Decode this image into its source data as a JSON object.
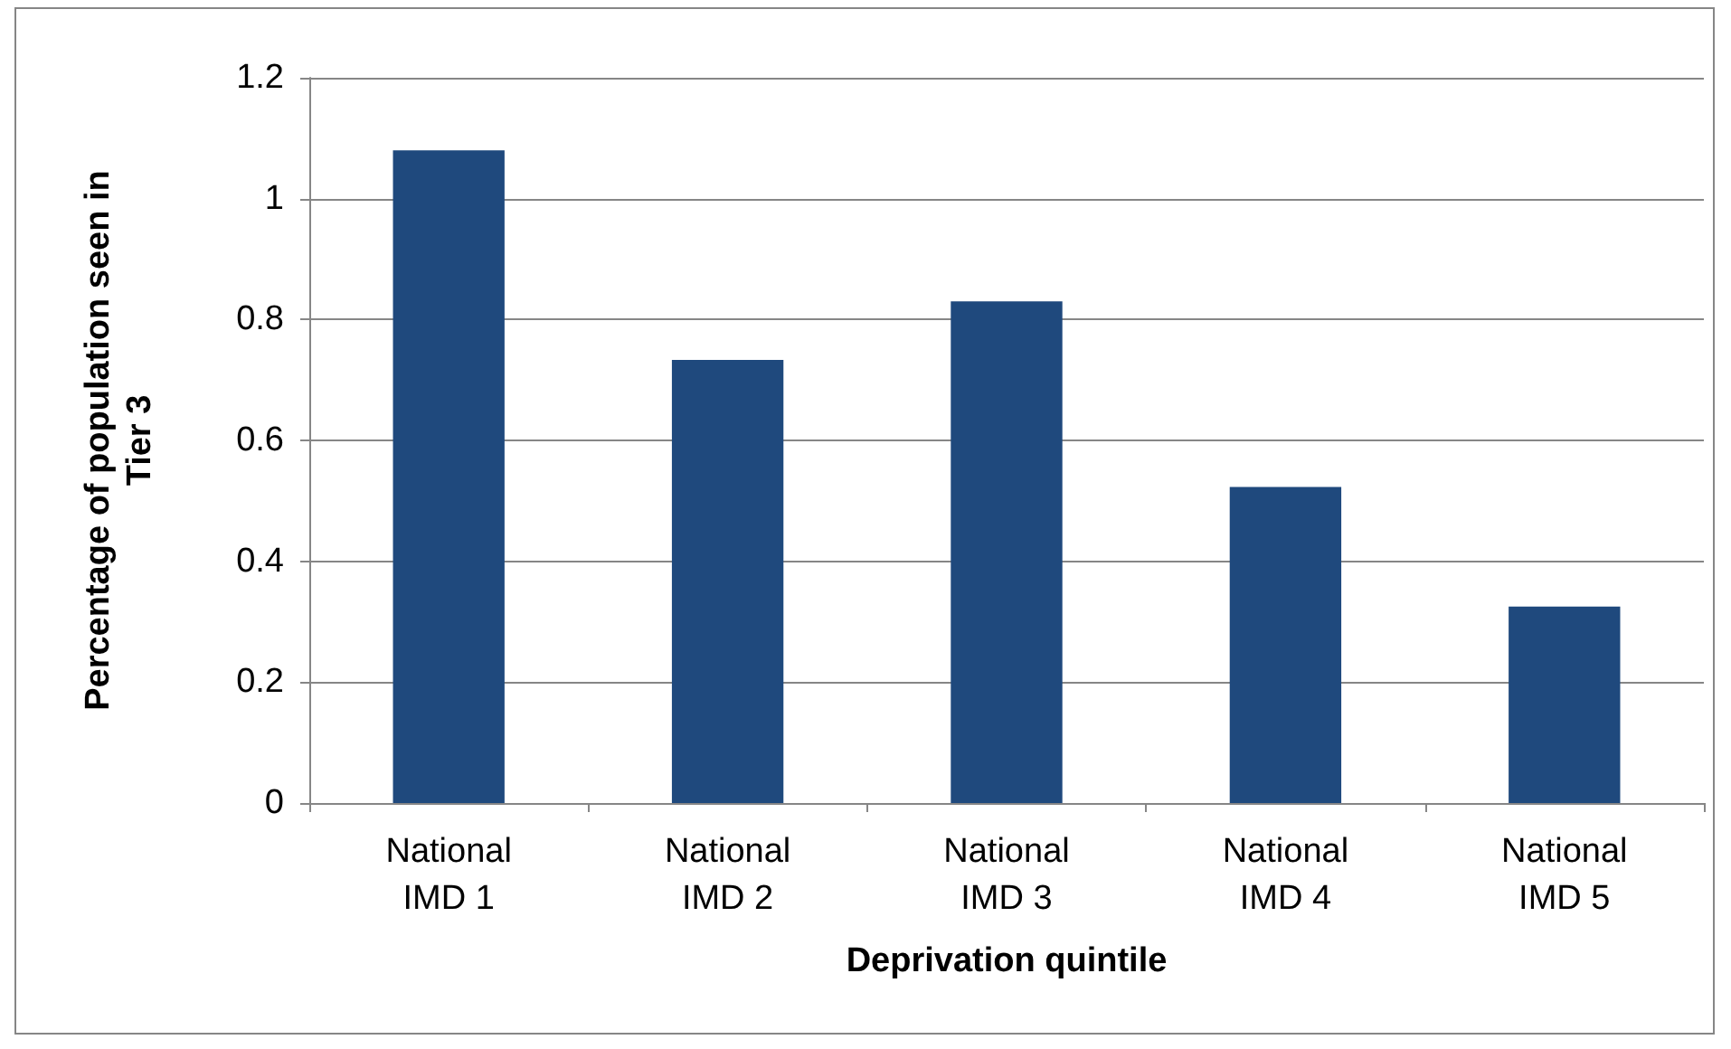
{
  "chart_data": {
    "type": "bar",
    "xlabel": "Deprivation quintile",
    "ylabel": "Percentage of population seen in Tier 3",
    "categories": [
      "National IMD 1",
      "National IMD 2",
      "National IMD 3",
      "National IMD 4",
      "National IMD 5"
    ],
    "values": [
      1.08,
      0.733,
      0.83,
      0.523,
      0.325
    ],
    "color": "#1f497d",
    "ylim": [
      0,
      1.2
    ],
    "yticks": [
      0,
      0.2,
      0.4,
      0.6,
      0.8,
      1,
      1.2
    ],
    "grid": "y"
  }
}
